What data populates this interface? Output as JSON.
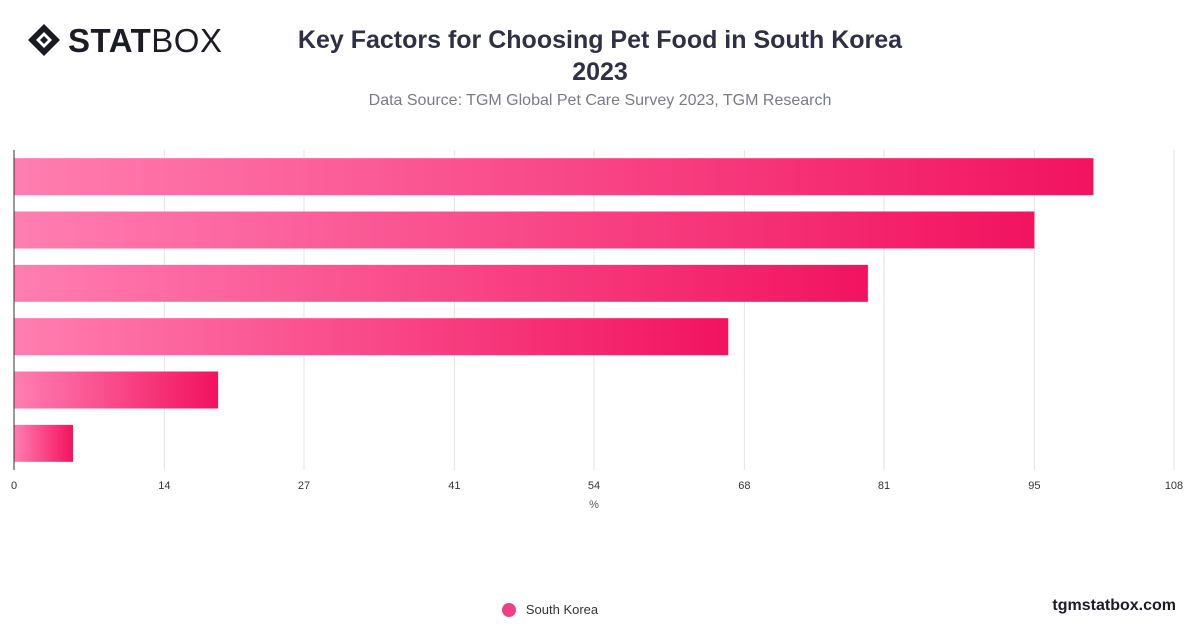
{
  "brand": {
    "logo_bold": "STAT",
    "logo_light": "BOX",
    "icon": "diamond-logo-icon"
  },
  "header": {
    "title_line1": "Key Factors for Choosing Pet Food in South Korea",
    "title_line2": "2023",
    "subtitle": "Data Source: TGM Global Pet Care Survey 2023, TGM Research"
  },
  "legend": {
    "label": "South Korea",
    "color": "#ef3f86"
  },
  "footer": {
    "site": "tgmstatbox.com"
  },
  "colors": {
    "bar_start": "#ff7eb0",
    "bar_end": "#f2135f",
    "grid": "#e3e3e3",
    "axis": "#333333"
  },
  "chart_data": {
    "type": "bar",
    "orientation": "horizontal",
    "categories": [
      "",
      "",
      "",
      "",
      "",
      ""
    ],
    "series": [
      {
        "name": "South Korea",
        "values": [
          100.5,
          95,
          79.5,
          66.5,
          19,
          5.5
        ]
      }
    ],
    "xlabel": "%",
    "ylabel": "",
    "xlim": [
      0,
      108
    ],
    "x_ticks": [
      0,
      14,
      27,
      41,
      54,
      68,
      81,
      95,
      108
    ],
    "grid": true,
    "legend_position": "bottom"
  }
}
